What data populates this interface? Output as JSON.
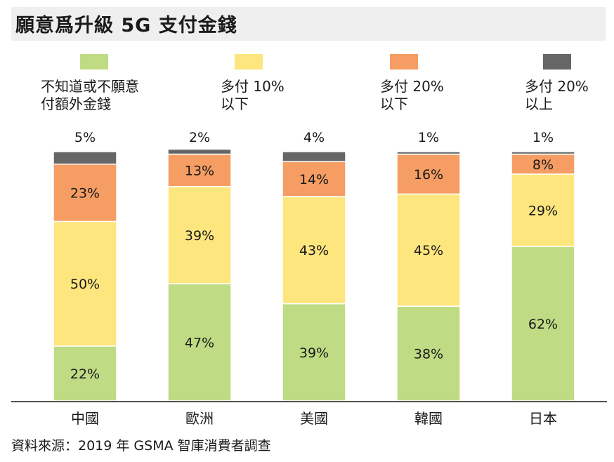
{
  "title": "願意爲升級 5G 支付金錢",
  "source": "資料來源：2019 年 GSMA 智庫消費者調查",
  "legend": [
    {
      "label": "不知道或不願意\n付額外金錢",
      "color": "#bfdb83"
    },
    {
      "label": "多付 10%\n以下",
      "color": "#fee67e"
    },
    {
      "label": "多付 20%\n以下",
      "color": "#f59d63"
    },
    {
      "label": "多付 20%\n以上",
      "color": "#666666"
    }
  ],
  "chart_data": {
    "type": "bar",
    "stacked": true,
    "categories": [
      "中國",
      "歐洲",
      "美國",
      "韓國",
      "日本"
    ],
    "series": [
      {
        "name": "不知道或不願意付額外金錢",
        "color": "#bfdb83",
        "values": [
          22,
          47,
          39,
          38,
          62
        ],
        "labels": [
          "22%",
          "47%",
          "39%",
          "38%",
          "62%"
        ]
      },
      {
        "name": "多付 10% 以下",
        "color": "#fee67e",
        "values": [
          50,
          39,
          43,
          45,
          29
        ],
        "labels": [
          "50%",
          "39%",
          "43%",
          "45%",
          "29%"
        ]
      },
      {
        "name": "多付 20% 以下",
        "color": "#f59d63",
        "values": [
          23,
          13,
          14,
          16,
          8
        ],
        "labels": [
          "23%",
          "13%",
          "14%",
          "16%",
          "8%"
        ]
      },
      {
        "name": "多付 20% 以上",
        "color": "#666666",
        "values": [
          5,
          2,
          4,
          1,
          1
        ],
        "labels": [
          "5%",
          "2%",
          "4%",
          "1%",
          "1%"
        ]
      }
    ],
    "ylim": [
      0,
      100
    ],
    "grid": false,
    "legend_position": "top"
  }
}
